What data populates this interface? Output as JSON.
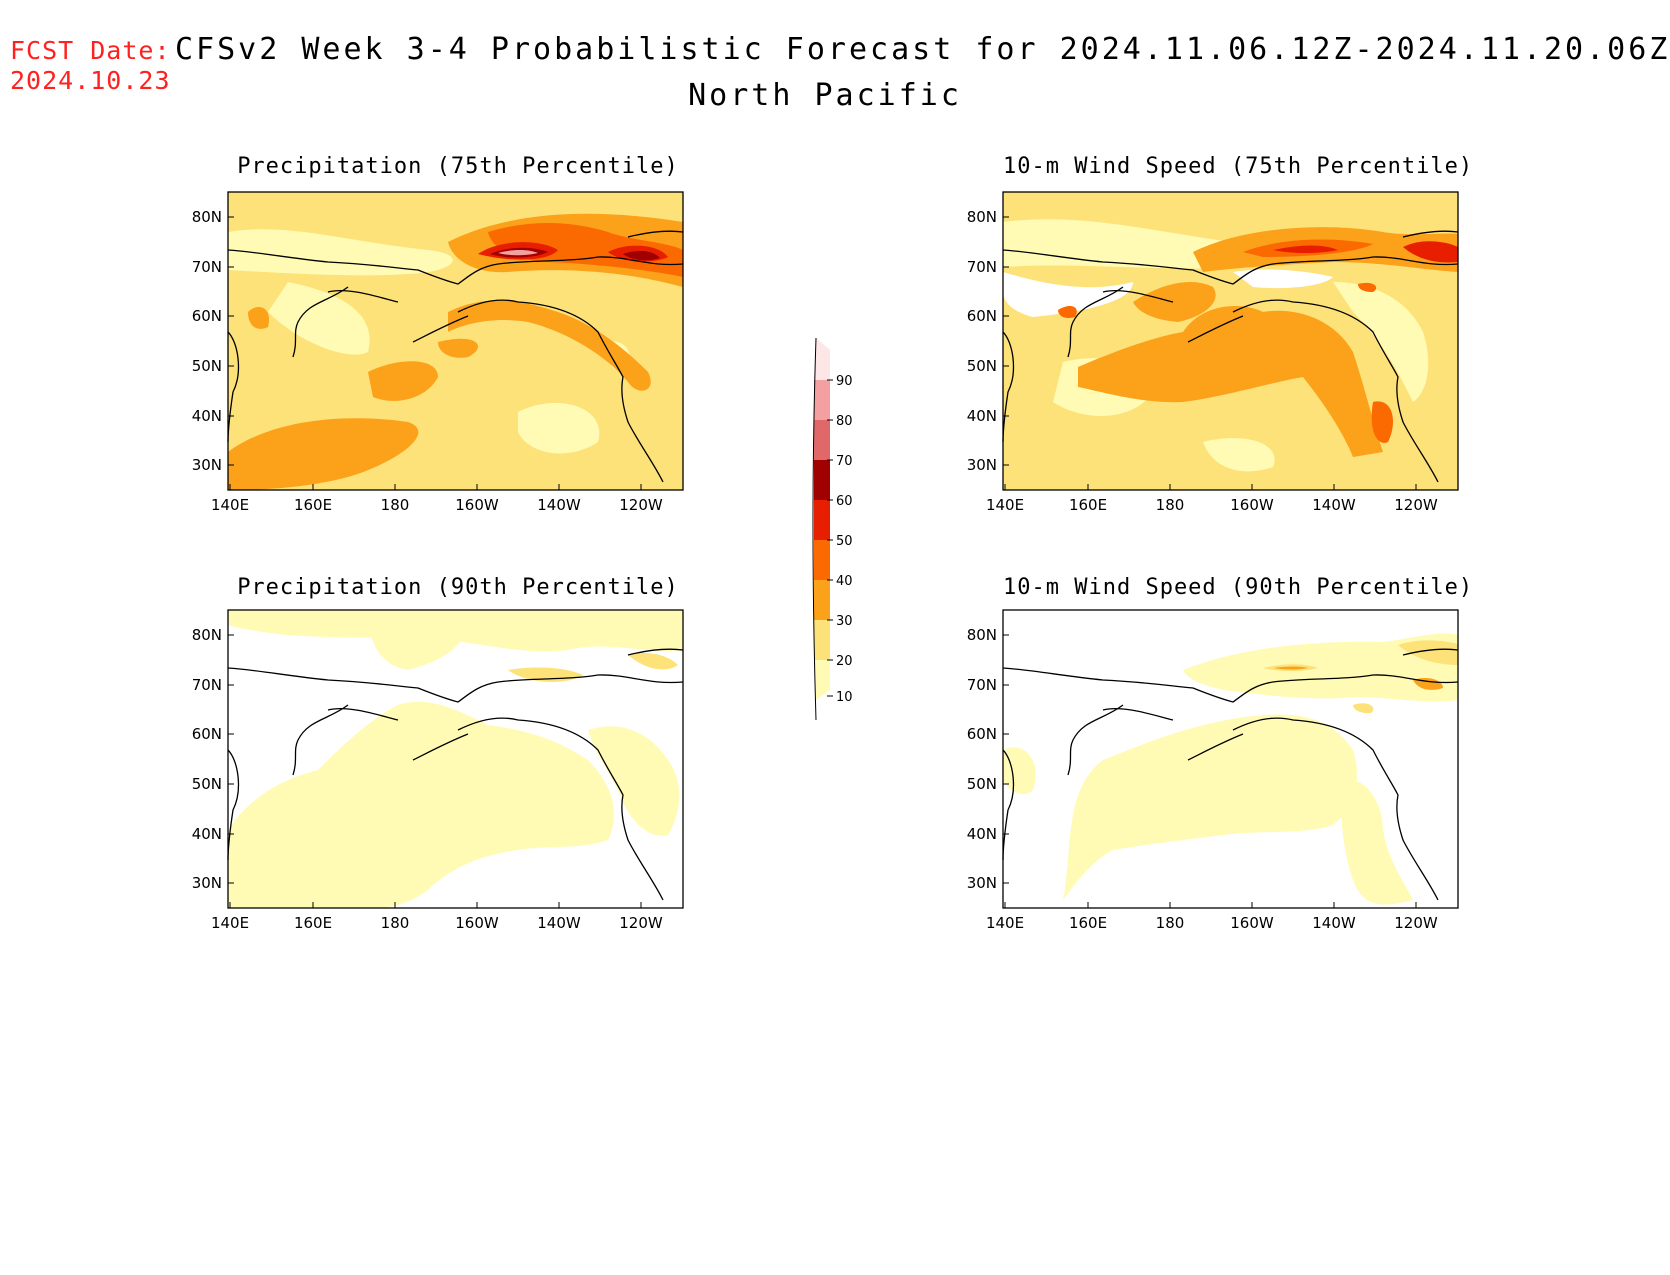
{
  "header": {
    "fcst_label": "FCST Date:",
    "fcst_date": "2024.10.23",
    "title": "CFSv2 Week 3-4 Probabilistic Forecast for 2024.11.06.12Z-2024.11.20.06Z",
    "subtitle": "North Pacific"
  },
  "panels": [
    {
      "id": "precip75",
      "title": "Precipitation (75th Percentile)"
    },
    {
      "id": "wind75",
      "title": "10-m Wind Speed (75th Percentile)"
    },
    {
      "id": "precip90",
      "title": "Precipitation (90th Percentile)"
    },
    {
      "id": "wind90",
      "title": "10-m Wind Speed (90th Percentile)"
    }
  ],
  "axes": {
    "x_ticks": [
      "140E",
      "160E",
      "180",
      "160W",
      "140W",
      "120W"
    ],
    "y_ticks": [
      "80N",
      "70N",
      "60N",
      "50N",
      "40N",
      "30N"
    ]
  },
  "colorbar": {
    "levels": [
      "10",
      "20",
      "30",
      "40",
      "50",
      "60",
      "70",
      "80",
      "90"
    ],
    "colors": [
      "#fffbb5",
      "#fde27a",
      "#fba11a",
      "#fb6a00",
      "#e71e00",
      "#a00000",
      "#e06868",
      "#f4a0a0",
      "#fde6e6"
    ]
  }
}
